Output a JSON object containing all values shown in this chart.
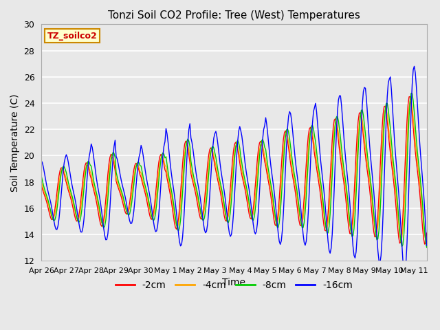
{
  "title": "Tonzi Soil CO2 Profile: Tree (West) Temperatures",
  "xlabel": "Time",
  "ylabel": "Soil Temperature (C)",
  "ylim": [
    12,
    30
  ],
  "yticks": [
    12,
    14,
    16,
    18,
    20,
    22,
    24,
    26,
    28,
    30
  ],
  "n_days": 15.5,
  "tick_labels": [
    "Apr 26",
    "Apr 27",
    "Apr 28",
    "Apr 29",
    "Apr 30",
    "May 1",
    "May 2",
    "May 3",
    "May 4",
    "May 5",
    "May 6",
    "May 7",
    "May 8",
    "May 9",
    "May 10",
    "May 11"
  ],
  "series": [
    {
      "label": "-2cm",
      "color": "#ff0000",
      "amp_factor": 0.72,
      "phase_shift": 0.0,
      "smoothing": 0.9
    },
    {
      "label": "-4cm",
      "color": "#ffa500",
      "amp_factor": 0.68,
      "phase_shift": 0.04,
      "smoothing": 0.92
    },
    {
      "label": "-8cm",
      "color": "#00cc00",
      "amp_factor": 0.75,
      "phase_shift": 0.08,
      "smoothing": 0.94
    },
    {
      "label": "-16cm",
      "color": "#0000ff",
      "amp_factor": 1.0,
      "phase_shift": 0.18,
      "smoothing": 0.96
    }
  ],
  "background_color": "#e8e8e8",
  "plot_bg_color": "#e8e8e8",
  "grid_color": "#ffffff",
  "legend_label": "TZ_soilco2",
  "legend_bg": "#ffffcc",
  "legend_edge": "#cc8800"
}
